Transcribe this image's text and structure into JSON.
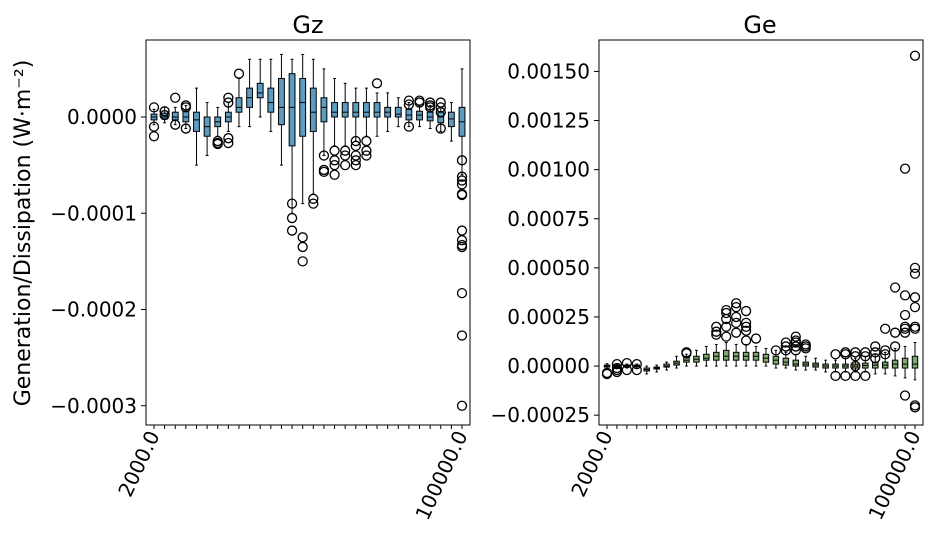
{
  "figure": {
    "ylabel": "Generation/Dissipation (W·m⁻²)"
  },
  "colors": {
    "gz_box": "#5b9cc0",
    "ge_box": "#7ea86b",
    "outlier": "#000000",
    "axis": "#000000"
  },
  "chart_data": [
    {
      "type": "box",
      "title": "Gz",
      "ylabel": "Generation/Dissipation (W·m⁻²)",
      "ylim": [
        -0.00032,
        8e-05
      ],
      "yticks": [
        0.0,
        -0.0001,
        -0.0002,
        -0.0003
      ],
      "ytick_labels": [
        "0.0000",
        "−0.0001",
        "−0.0002",
        "−0.0003"
      ],
      "x_tick_labels_visible": [
        "2000.0",
        "100000.0"
      ],
      "boxes": [
        {
          "q1": -3e-06,
          "med": 0.0,
          "q3": 3e-06,
          "wlo": -8e-06,
          "whi": 8e-06,
          "out": [
            1e-05,
            -1e-05,
            -2e-05
          ]
        },
        {
          "q1": -2e-06,
          "med": 0.0,
          "q3": 4e-06,
          "wlo": -6e-06,
          "whi": 1e-05,
          "out": [
            6e-06,
            2e-06
          ]
        },
        {
          "q1": -3e-06,
          "med": 0.0,
          "q3": 5e-06,
          "wlo": -8e-06,
          "whi": 1e-05,
          "out": [
            2e-05,
            -8e-06
          ]
        },
        {
          "q1": -5e-06,
          "med": 0.0,
          "q3": 6e-06,
          "wlo": -1.2e-05,
          "whi": 1.2e-05,
          "out": [
            1.2e-05,
            1e-05,
            -1.2e-05
          ]
        },
        {
          "q1": -1.5e-05,
          "med": -3e-06,
          "q3": 5e-06,
          "wlo": -5e-05,
          "whi": 3e-05,
          "out": []
        },
        {
          "q1": -2e-05,
          "med": -1e-05,
          "q3": 0.0,
          "wlo": -4e-05,
          "whi": 1.5e-05,
          "out": []
        },
        {
          "q1": -1e-05,
          "med": -5e-06,
          "q3": 0.0,
          "wlo": -2e-05,
          "whi": 1e-05,
          "out": [
            -2.5e-05,
            -2.8e-05,
            -2.7e-05
          ]
        },
        {
          "q1": -5e-06,
          "med": 0.0,
          "q3": 5e-06,
          "wlo": -1.5e-05,
          "whi": 1.5e-05,
          "out": [
            2e-05,
            1.5e-05,
            -2.2e-05,
            -2.7e-05
          ]
        },
        {
          "q1": 5e-06,
          "med": 1e-05,
          "q3": 2e-05,
          "wlo": -1e-05,
          "whi": 4e-05,
          "out": [
            4.5e-05
          ]
        },
        {
          "q1": 1e-05,
          "med": 2e-05,
          "q3": 3e-05,
          "wlo": -1e-05,
          "whi": 6e-05,
          "out": []
        },
        {
          "q1": 2e-05,
          "med": 2.5e-05,
          "q3": 3.5e-05,
          "wlo": 0.0,
          "whi": 6e-05,
          "out": []
        },
        {
          "q1": 5e-06,
          "med": 1.5e-05,
          "q3": 3e-05,
          "wlo": -1.5e-05,
          "whi": 6e-05,
          "out": []
        },
        {
          "q1": -8e-06,
          "med": 1e-05,
          "q3": 4e-05,
          "wlo": -5e-05,
          "whi": 6.5e-05,
          "out": []
        },
        {
          "q1": -3e-05,
          "med": 1e-05,
          "q3": 4.5e-05,
          "wlo": -0.0001,
          "whi": 6e-05,
          "out": [
            -9e-05,
            -0.000105,
            -0.000118
          ]
        },
        {
          "q1": -2e-05,
          "med": 1.5e-05,
          "q3": 4e-05,
          "wlo": -9e-05,
          "whi": 6.5e-05,
          "out": [
            -0.000125,
            -0.000135,
            -0.00015
          ]
        },
        {
          "q1": -1.5e-05,
          "med": 5e-06,
          "q3": 3e-05,
          "wlo": -8e-05,
          "whi": 6e-05,
          "out": [
            -8.5e-05,
            -9e-05
          ]
        },
        {
          "q1": -5e-06,
          "med": 1e-05,
          "q3": 2e-05,
          "wlo": -4e-05,
          "whi": 5e-05,
          "out": [
            -4e-05,
            -5.5e-05,
            -5.7e-05
          ]
        },
        {
          "q1": 0.0,
          "med": 5e-06,
          "q3": 1.5e-05,
          "wlo": -3e-05,
          "whi": 4e-05,
          "out": [
            -3.5e-05,
            -4.5e-05,
            -5e-05,
            -6e-05
          ]
        },
        {
          "q1": 0.0,
          "med": 5e-06,
          "q3": 1.5e-05,
          "wlo": -3e-05,
          "whi": 3.5e-05,
          "out": [
            -3.5e-05,
            -4e-05,
            -5e-05
          ]
        },
        {
          "q1": 0.0,
          "med": 5e-06,
          "q3": 1.5e-05,
          "wlo": -2.5e-05,
          "whi": 3e-05,
          "out": [
            -2.5e-05,
            -3e-05,
            -4e-05,
            -4.5e-05,
            -5e-05
          ]
        },
        {
          "q1": 0.0,
          "med": 5e-06,
          "q3": 1.5e-05,
          "wlo": -2e-05,
          "whi": 3e-05,
          "out": [
            -2.5e-05,
            -3.5e-05,
            -4e-05
          ]
        },
        {
          "q1": 0.0,
          "med": 5e-06,
          "q3": 1.5e-05,
          "wlo": -2e-05,
          "whi": 2.5e-05,
          "out": [
            3.5e-05
          ]
        },
        {
          "q1": 0.0,
          "med": 5e-06,
          "q3": 1e-05,
          "wlo": -1.5e-05,
          "whi": 2.5e-05,
          "out": []
        },
        {
          "q1": 0.0,
          "med": 3e-06,
          "q3": 1e-05,
          "wlo": -1e-05,
          "whi": 2e-05,
          "out": []
        },
        {
          "q1": -3e-06,
          "med": 2e-06,
          "q3": 8e-06,
          "wlo": -1e-05,
          "whi": 1.5e-05,
          "out": [
            1.7e-05,
            1.3e-05,
            -1e-05
          ]
        },
        {
          "q1": -3e-06,
          "med": 2e-06,
          "q3": 6e-06,
          "wlo": -1e-05,
          "whi": 1.2e-05,
          "out": [
            1.7e-05,
            1.5e-05
          ]
        },
        {
          "q1": -4e-06,
          "med": 0.0,
          "q3": 5e-06,
          "wlo": -1.2e-05,
          "whi": 1.2e-05,
          "out": [
            1.5e-05,
            1.2e-05,
            1e-05
          ]
        },
        {
          "q1": -6e-06,
          "med": 0.0,
          "q3": 5e-06,
          "wlo": -1.5e-05,
          "whi": 1e-05,
          "out": [
            1.5e-05,
            1e-05,
            5e-06,
            -1.2e-05
          ]
        },
        {
          "q1": -1e-05,
          "med": -2e-06,
          "q3": 5e-06,
          "wlo": -2.5e-05,
          "whi": 1.5e-05,
          "out": []
        },
        {
          "q1": -2e-05,
          "med": -5e-06,
          "q3": 1e-05,
          "wlo": -6e-05,
          "whi": 5e-05,
          "out": [
            -4.5e-05,
            -6.2e-05,
            -6.6e-05,
            -7e-05,
            -8e-05,
            -8.1e-05,
            -0.000118,
            -0.000128,
            -0.000133,
            -0.000135,
            -0.000183,
            -0.000227,
            -0.0003
          ]
        }
      ]
    },
    {
      "type": "box",
      "title": "Ge",
      "ylim": [
        -0.0003,
        0.00166
      ],
      "yticks": [
        -0.00025,
        0.0,
        0.00025,
        0.0005,
        0.00075,
        0.001,
        0.00125,
        0.0015
      ],
      "ytick_labels": [
        "−0.00025",
        "0.00000",
        "0.00025",
        "0.00050",
        "0.00075",
        "0.00100",
        "0.00125",
        "0.00150"
      ],
      "x_tick_labels_visible": [
        "2000.0",
        "100000.0"
      ],
      "boxes": [
        {
          "q1": -5e-06,
          "med": 0.0,
          "q3": 5e-06,
          "wlo": -1.5e-05,
          "whi": 1.2e-05,
          "out": [
            -4e-05,
            -3.5e-05
          ]
        },
        {
          "q1": -5e-06,
          "med": 0.0,
          "q3": 5e-06,
          "wlo": -1.2e-05,
          "whi": 1e-05,
          "out": [
            1e-05,
            -1e-05,
            -2e-05,
            -3e-05
          ]
        },
        {
          "q1": -3e-06,
          "med": 0.0,
          "q3": 5e-06,
          "wlo": -1e-05,
          "whi": 1e-05,
          "out": [
            1.5e-05,
            -2e-05
          ]
        },
        {
          "q1": -3e-06,
          "med": 0.0,
          "q3": 5e-06,
          "wlo": -1e-05,
          "whi": 1e-05,
          "out": [
            1e-05,
            -2e-05
          ]
        },
        {
          "q1": -2.5e-05,
          "med": -1.8e-05,
          "q3": -1e-05,
          "wlo": -4e-05,
          "whi": 0.0,
          "out": []
        },
        {
          "q1": -1.5e-05,
          "med": -1e-05,
          "q3": -5e-06,
          "wlo": -3e-05,
          "whi": 5e-06,
          "out": []
        },
        {
          "q1": -5e-06,
          "med": 0.0,
          "q3": 1e-05,
          "wlo": -2e-05,
          "whi": 2e-05,
          "out": []
        },
        {
          "q1": 5e-06,
          "med": 1.5e-05,
          "q3": 2.5e-05,
          "wlo": -1e-05,
          "whi": 5e-05,
          "out": []
        },
        {
          "q1": 2e-05,
          "med": 3e-05,
          "q3": 4.5e-05,
          "wlo": 0.0,
          "whi": 6e-05,
          "out": [
            7e-05,
            6.5e-05
          ]
        },
        {
          "q1": 2e-05,
          "med": 3.5e-05,
          "q3": 5e-05,
          "wlo": 0.0,
          "whi": 8e-05,
          "out": []
        },
        {
          "q1": 3e-05,
          "med": 4e-05,
          "q3": 6e-05,
          "wlo": 0.0,
          "whi": 0.0001,
          "out": []
        },
        {
          "q1": 3e-05,
          "med": 5e-05,
          "q3": 7e-05,
          "wlo": 0.0,
          "whi": 0.00011,
          "out": [
            0.00016,
            0.000175,
            0.0002
          ]
        },
        {
          "q1": 3e-05,
          "med": 5e-05,
          "q3": 8e-05,
          "wlo": 0.0,
          "whi": 0.00012,
          "out": [
            0.00015,
            0.0002,
            0.00024,
            0.00027,
            0.000285
          ]
        },
        {
          "q1": 3e-05,
          "med": 5e-05,
          "q3": 7e-05,
          "wlo": 0.0,
          "whi": 0.00011,
          "out": [
            0.00017,
            0.00022,
            0.00025,
            0.0003,
            0.00032
          ]
        },
        {
          "q1": 3e-05,
          "med": 5e-05,
          "q3": 7e-05,
          "wlo": 0.0,
          "whi": 0.00011,
          "out": [
            0.00013,
            0.00018,
            0.0002,
            0.00022,
            0.00028
          ]
        },
        {
          "q1": 3e-05,
          "med": 5e-05,
          "q3": 7e-05,
          "wlo": 0.0,
          "whi": 0.0001,
          "out": [
            0.00014
          ]
        },
        {
          "q1": 2e-05,
          "med": 4e-05,
          "q3": 6e-05,
          "wlo": 0.0,
          "whi": 9e-05,
          "out": []
        },
        {
          "q1": 1e-05,
          "med": 3e-05,
          "q3": 5e-05,
          "wlo": -1e-05,
          "whi": 8e-05,
          "out": [
            8e-05
          ]
        },
        {
          "q1": 5e-06,
          "med": 2e-05,
          "q3": 4e-05,
          "wlo": -1e-05,
          "whi": 7e-05,
          "out": [
            8e-05,
            0.0001,
            0.00012
          ]
        },
        {
          "q1": 0.0,
          "med": 1e-05,
          "q3": 3e-05,
          "wlo": -2e-05,
          "whi": 6e-05,
          "out": [
            8e-05,
            0.0001,
            0.00012,
            0.00013,
            0.00015
          ]
        },
        {
          "q1": 0.0,
          "med": 1e-05,
          "q3": 2e-05,
          "wlo": -2e-05,
          "whi": 5e-05,
          "out": [
            9e-05,
            0.0001,
            0.00011
          ]
        },
        {
          "q1": -5e-06,
          "med": 5e-06,
          "q3": 1.5e-05,
          "wlo": -2e-05,
          "whi": 4e-05,
          "out": []
        },
        {
          "q1": -1e-05,
          "med": 0.0,
          "q3": 1e-05,
          "wlo": -3e-05,
          "whi": 3e-05,
          "out": []
        },
        {
          "q1": -1e-05,
          "med": 0.0,
          "q3": 1e-05,
          "wlo": -3e-05,
          "whi": 3e-05,
          "out": [
            6e-05,
            -5e-05
          ]
        },
        {
          "q1": -1e-05,
          "med": 0.0,
          "q3": 1e-05,
          "wlo": -3e-05,
          "whi": 4e-05,
          "out": [
            7e-05,
            6e-05,
            -5e-05
          ]
        },
        {
          "q1": -1e-05,
          "med": 0.0,
          "q3": 1e-05,
          "wlo": -3e-05,
          "whi": 4e-05,
          "out": [
            7e-05,
            5e-05,
            0.0,
            -5e-05
          ]
        },
        {
          "q1": -1e-05,
          "med": 3e-06,
          "q3": 1.5e-05,
          "wlo": -3e-05,
          "whi": 5e-05,
          "out": [
            7e-05,
            5e-05,
            -5e-05
          ]
        },
        {
          "q1": -1e-05,
          "med": 5e-06,
          "q3": 2e-05,
          "wlo": -4e-05,
          "whi": 6e-05,
          "out": [
            0.0001,
            7e-05,
            4e-05
          ]
        },
        {
          "q1": -1e-05,
          "med": 5e-06,
          "q3": 2e-05,
          "wlo": -4e-05,
          "whi": 7e-05,
          "out": [
            0.00019,
            8e-05,
            6e-05
          ]
        },
        {
          "q1": -1e-05,
          "med": 1e-05,
          "q3": 3e-05,
          "wlo": -5e-05,
          "whi": 9e-05,
          "out": [
            0.0004,
            0.00017,
            0.0001
          ]
        },
        {
          "q1": -1e-05,
          "med": 1e-05,
          "q3": 4e-05,
          "wlo": -6e-05,
          "whi": 0.0001,
          "out": [
            0.001005,
            0.00036,
            0.00026,
            0.0002,
            0.00019,
            0.00017,
            -0.00015
          ]
        },
        {
          "q1": -1e-05,
          "med": 1e-05,
          "q3": 5e-05,
          "wlo": -7e-05,
          "whi": 0.00012,
          "out": [
            0.00158,
            0.0005,
            0.00047,
            0.00035,
            0.0003,
            0.0002,
            0.00019,
            -0.0002,
            -0.00021
          ]
        }
      ]
    }
  ]
}
